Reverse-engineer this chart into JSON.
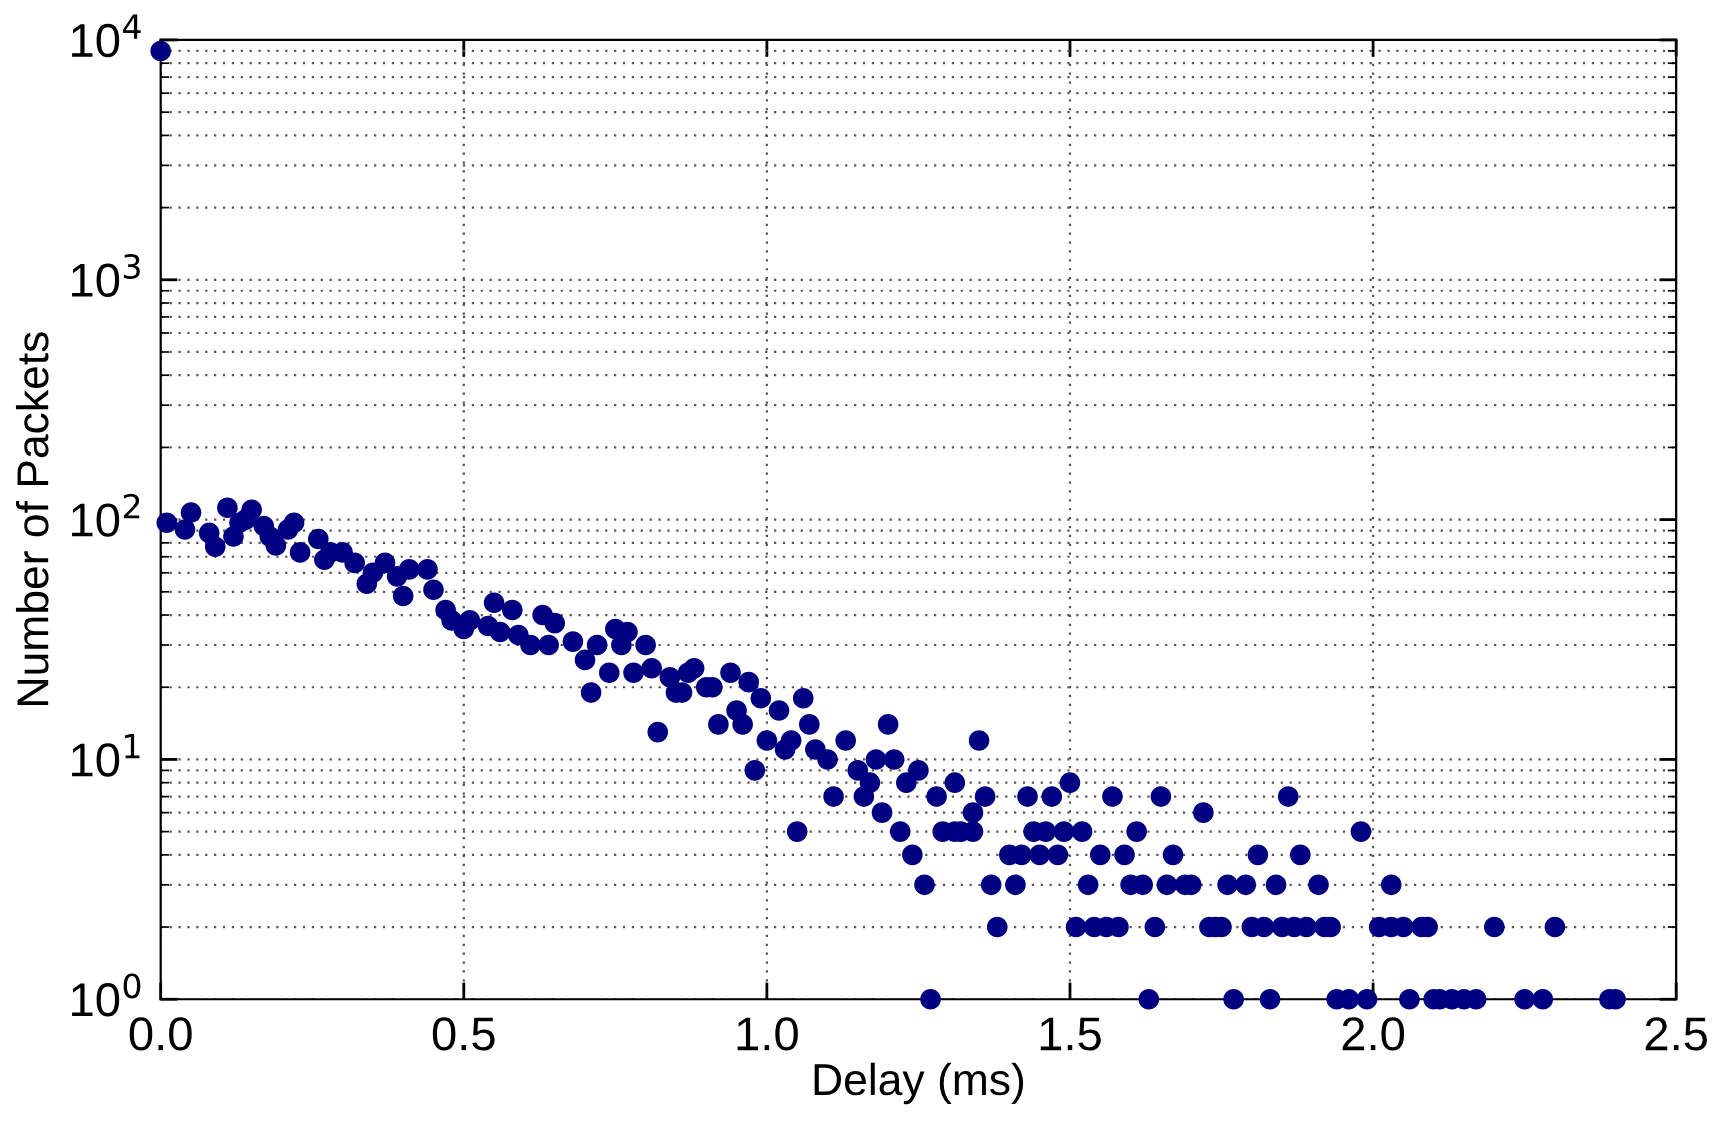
{
  "chart_data": {
    "type": "scatter",
    "xlabel": "Delay (ms)",
    "ylabel": "Number of Packets",
    "log": "y",
    "grid": true,
    "marker": "circle",
    "xlim": [
      0,
      2.5
    ],
    "xticks": [
      {
        "value": 0,
        "label": "0.0"
      },
      0.5,
      {
        "value": 1,
        "label": "1.0"
      },
      1.5,
      {
        "value": 2,
        "label": "2.0"
      },
      2.5
    ],
    "ylim": [
      1,
      10000
    ],
    "yticks": [
      {
        "value": 1,
        "label": "10$^{0}$"
      },
      {
        "value": 10,
        "label": "10$^{1}$"
      },
      {
        "value": 100,
        "label": "10$^{2}$"
      },
      {
        "value": 1000,
        "label": "10$^{3}$"
      },
      {
        "value": 10000,
        "label": "10$^{4}$"
      }
    ],
    "series": [
      {
        "color": "#000080",
        "x": [
          0.0,
          0.01,
          0.04,
          0.05,
          0.08,
          0.09,
          0.11,
          0.12,
          0.13,
          0.15,
          0.14,
          0.17,
          0.18,
          0.19,
          0.21,
          0.22,
          0.23,
          0.26,
          0.27,
          0.28,
          0.3,
          0.32,
          0.34,
          0.35,
          0.37,
          0.39,
          0.4,
          0.41,
          0.44,
          0.45,
          0.47,
          0.48,
          0.5,
          0.51,
          0.54,
          0.55,
          0.56,
          0.58,
          0.59,
          0.61,
          0.63,
          0.65,
          0.64,
          0.68,
          0.7,
          0.72,
          0.75,
          0.77,
          0.76,
          0.8,
          0.74,
          0.71,
          0.78,
          0.81,
          0.84,
          0.85,
          0.86,
          0.87,
          0.88,
          0.9,
          0.91,
          0.94,
          0.97,
          0.99,
          1.02,
          1.06,
          1.07,
          0.95,
          0.92,
          0.96,
          0.82,
          1.0,
          1.03,
          1.04,
          0.98,
          1.08,
          1.1,
          1.13,
          1.11,
          1.15,
          1.16,
          1.05,
          1.17,
          1.18,
          1.19,
          1.2,
          1.21,
          1.22,
          1.23,
          1.24,
          1.25,
          1.26,
          1.27,
          1.28,
          1.29,
          1.31,
          1.31,
          1.32,
          1.34,
          1.34,
          1.35,
          1.36,
          1.37,
          1.38,
          1.4,
          1.41,
          1.42,
          1.43,
          1.44,
          1.45,
          1.46,
          1.47,
          1.48,
          1.49,
          1.5,
          1.51,
          1.52,
          1.53,
          1.54,
          1.55,
          1.56,
          1.57,
          1.58,
          1.59,
          1.6,
          1.61,
          1.62,
          1.63,
          1.64,
          1.65,
          1.66,
          1.67,
          1.69,
          1.7,
          1.72,
          1.73,
          1.74,
          1.75,
          1.76,
          1.77,
          1.79,
          1.8,
          1.81,
          1.82,
          1.83,
          1.84,
          1.85,
          1.86,
          1.87,
          1.88,
          1.89,
          1.91,
          1.92,
          1.93,
          1.94,
          1.96,
          1.98,
          1.99,
          2.01,
          2.03,
          2.03,
          2.05,
          2.06,
          2.08,
          2.09,
          2.1,
          2.11,
          2.13,
          2.15,
          2.17,
          2.2,
          2.25,
          2.28,
          2.3,
          2.39,
          2.4
        ],
        "values": [
          9000,
          97,
          91,
          107,
          88,
          77,
          112,
          85,
          97,
          110,
          100,
          94,
          85,
          78,
          91,
          97,
          73,
          83,
          68,
          73,
          73,
          66,
          54,
          60,
          66,
          58,
          48,
          62,
          62,
          51,
          42,
          38,
          35,
          38,
          36,
          45,
          34,
          42,
          33,
          30,
          40,
          37,
          30,
          31,
          26,
          30,
          35,
          34,
          30,
          30,
          23,
          19,
          23,
          24,
          22,
          19,
          19,
          23,
          24,
          20,
          20,
          23,
          21,
          18,
          16,
          18,
          14,
          16,
          14,
          14,
          13,
          12,
          11,
          12,
          9,
          11,
          10,
          12,
          7,
          9,
          7,
          5,
          8,
          10,
          6,
          14,
          10,
          5,
          8,
          4,
          9,
          3,
          1,
          7,
          5,
          5,
          8,
          5,
          5,
          6,
          12,
          7,
          3,
          2,
          4,
          3,
          4,
          7,
          5,
          4,
          5,
          7,
          4,
          5,
          8,
          2,
          5,
          3,
          2,
          4,
          2,
          7,
          2,
          4,
          3,
          5,
          3,
          1,
          2,
          7,
          3,
          4,
          3,
          3,
          6,
          2,
          2,
          2,
          3,
          1,
          3,
          2,
          4,
          2,
          1,
          3,
          2,
          7,
          2,
          4,
          2,
          3,
          2,
          2,
          1,
          1,
          5,
          1,
          2,
          2,
          3,
          2,
          1,
          2,
          2,
          1,
          1,
          1,
          1,
          1,
          2,
          1,
          1,
          2,
          1,
          1
        ]
      }
    ]
  }
}
